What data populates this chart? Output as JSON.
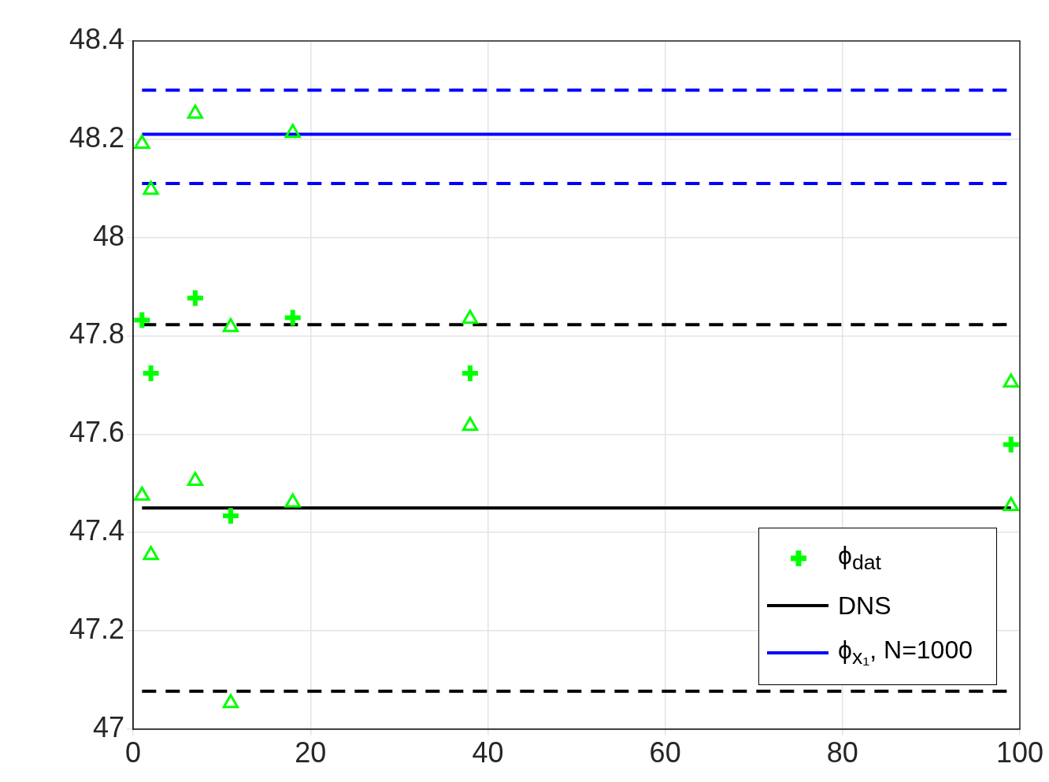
{
  "chart_data": {
    "type": "scatter",
    "xlim": [
      0,
      100
    ],
    "ylim": [
      47,
      48.4
    ],
    "xticks": [
      0,
      20,
      40,
      60,
      80,
      100
    ],
    "yticks": [
      47,
      47.2,
      47.4,
      47.6,
      47.8,
      48,
      48.2,
      48.4
    ],
    "grid": true,
    "legend": "bottom right",
    "series": [
      {
        "name": "ϕ$_{dat}$",
        "marker": "cross",
        "color": "#00ff00",
        "x": [
          1,
          2,
          7,
          11,
          18,
          38,
          99
        ],
        "values": [
          47.832,
          47.724,
          47.877,
          47.434,
          47.837,
          47.724,
          47.579
        ]
      },
      {
        "marker": "triangle",
        "color": "#00ff00",
        "x": [
          1,
          2,
          7,
          11,
          18,
          38,
          99
        ],
        "values": [
          48.191,
          48.097,
          48.252,
          47.818,
          48.213,
          47.835,
          47.705
        ]
      },
      {
        "marker": "triangle",
        "color": "#00ff00",
        "x": [
          1,
          2,
          7,
          11,
          18,
          38,
          99
        ],
        "values": [
          47.475,
          47.354,
          47.505,
          47.053,
          47.461,
          47.617,
          47.454
        ]
      },
      {
        "name": "DNS",
        "type": "line",
        "line_style": "solid",
        "color": "#000000",
        "x": [
          1,
          99
        ],
        "values": [
          47.45,
          47.45
        ]
      },
      {
        "type": "line",
        "line_style": "dashed",
        "color": "#000000",
        "x": [
          1,
          99
        ],
        "values": [
          47.823,
          47.823
        ]
      },
      {
        "type": "line",
        "line_style": "dashed",
        "color": "#000000",
        "x": [
          1,
          99
        ],
        "values": [
          47.077,
          47.077
        ]
      },
      {
        "name": "ϕ$_{x₁}$, N=1000",
        "type": "line",
        "line_style": "solid",
        "color": "#0000ff",
        "x": [
          1,
          99
        ],
        "values": [
          48.21,
          48.21
        ]
      },
      {
        "type": "line",
        "line_style": "dashed",
        "color": "#0000ff",
        "x": [
          1,
          99
        ],
        "values": [
          48.3,
          48.3
        ]
      },
      {
        "type": "line",
        "line_style": "dashed",
        "color": "#0000ff",
        "x": [
          1,
          99
        ],
        "values": [
          48.11,
          48.11
        ]
      }
    ]
  }
}
